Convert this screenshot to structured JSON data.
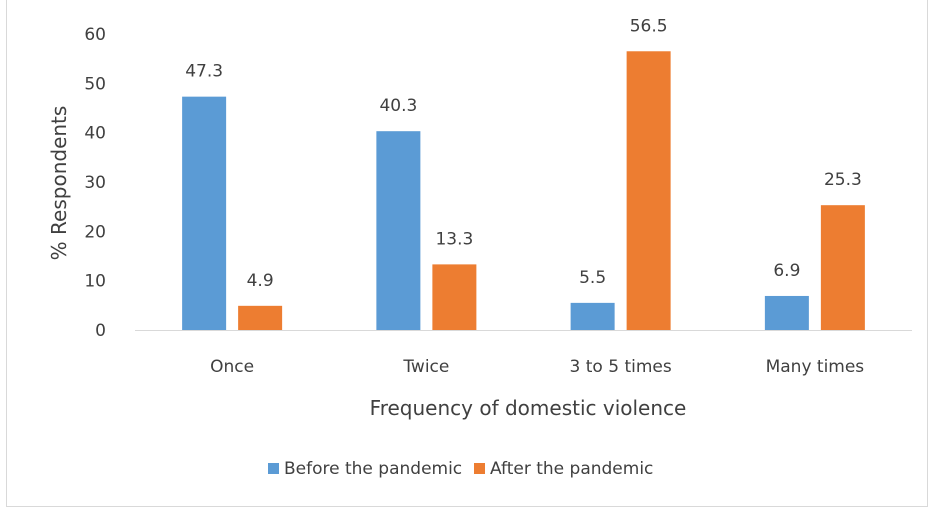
{
  "chart_data": {
    "type": "bar",
    "categories": [
      "Once",
      "Twice",
      "3 to 5 times",
      "Many times"
    ],
    "series": [
      {
        "name": "Before the pandemic",
        "values": [
          47.3,
          40.3,
          5.5,
          6.9
        ],
        "color": "#5b9bd5"
      },
      {
        "name": "After the pandemic",
        "values": [
          4.9,
          13.3,
          56.5,
          25.3
        ],
        "color": "#ed7d31"
      }
    ],
    "title": "",
    "xlabel": "Frequency of domestic violence",
    "ylabel": "% Respondents",
    "ylim": [
      0,
      60
    ],
    "yticks": [
      "0",
      "10",
      "20",
      "30",
      "40",
      "50",
      "60"
    ],
    "grid": false,
    "legend_position": "bottom"
  }
}
